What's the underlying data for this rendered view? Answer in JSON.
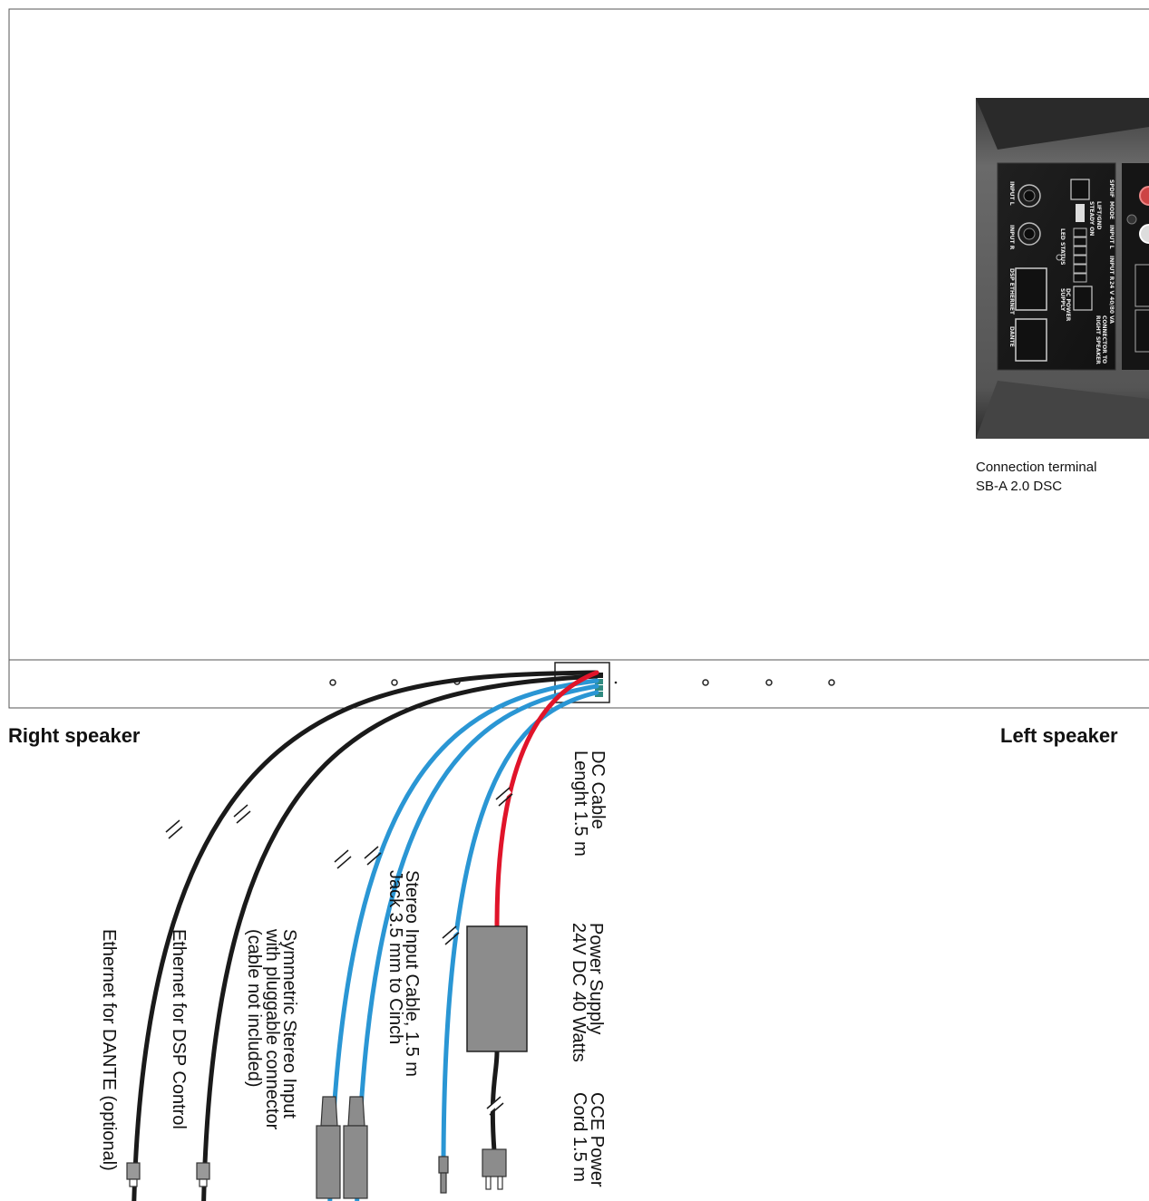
{
  "speaker_labels": {
    "right": "Right speaker",
    "left": "Left speaker"
  },
  "photo_caption": {
    "line1": "Connection terminal",
    "line2": "SB-A 2.0 DSC"
  },
  "panel_labels": {
    "spdif": "SPDIF",
    "mode": "MODE",
    "input_l_short": "INPUT L",
    "input_r_short": "INPUT R",
    "power": "24 V 40/80 VA",
    "lift_gnd": "LIFT/GND",
    "steady_on": "STEADY ON",
    "input_l": "INPUT L",
    "input_r": "INPUT R",
    "led_status": "LED STATUS",
    "dsp_ethernet": "DSP ETHERNET",
    "dante": "DANTE",
    "dc_power": "DC POWER",
    "supply": "SUPPLY",
    "connector_to": "CONNECTOR TO",
    "right_speaker": "RIGHT SPEAKER"
  },
  "cables": {
    "ethernet_dante": "Ethernet for DANTE (optional)",
    "ethernet_dsp": "Ethernet for DSP Control",
    "symmetric_line1": "Symmetric Stereo Input",
    "symmetric_line2": "with pluggable connector",
    "symmetric_line3": "(cable not included)",
    "stereo_line1": "Stereo Input Cable, 1.5 m",
    "stereo_line2": "Jack 3.5 mm to Cinch",
    "dc_line1": "DC Cable",
    "dc_line2": "Lenght 1.5 m",
    "psu_line1": "Power Supply",
    "psu_line2": "24V DC 40 Watts",
    "cce_line1": "CCE Power",
    "cce_line2": "Cord 1.5 m"
  },
  "colors": {
    "ethernet_cable": "#1a1a1a",
    "audio_cable": "#2a96d4",
    "dc_cable": "#e0142a",
    "connector_gray": "#8c8c8c",
    "outline": "#555555"
  }
}
